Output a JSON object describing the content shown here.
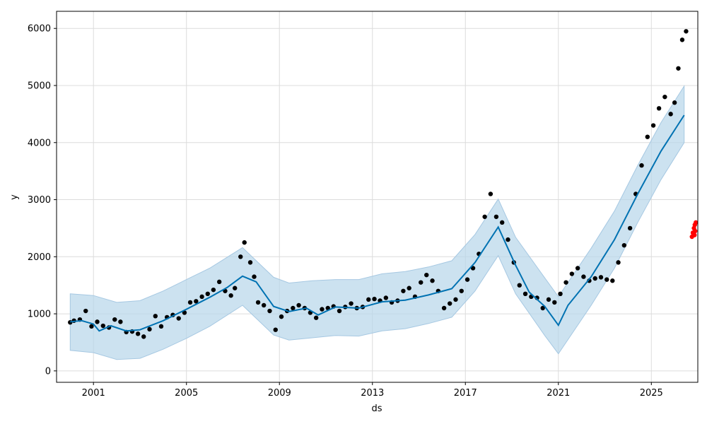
{
  "chart_data": {
    "type": "scatter",
    "title": "",
    "xlabel": "ds",
    "ylabel": "y",
    "xlim": [
      "1999-06-01",
      "2027-01-01"
    ],
    "ylim": [
      -200,
      6300
    ],
    "x_ticks": [
      "2001",
      "2005",
      "2009",
      "2013",
      "2017",
      "2021",
      "2025"
    ],
    "y_ticks": [
      0,
      1000,
      2000,
      3000,
      4000,
      5000,
      6000
    ],
    "grid": true,
    "colors": {
      "observed": "#000000",
      "forecast": "#0072B2",
      "uncertainty": "#b7d5ea",
      "test": "#ff0000"
    },
    "series": [
      {
        "role": "forecast",
        "points": [
          [
            "2000-01-01",
            860
          ],
          [
            "2000-07-01",
            880
          ],
          [
            "2001-01-01",
            820
          ],
          [
            "2001-04-01",
            700
          ],
          [
            "2001-10-01",
            790
          ],
          [
            "2002-06-01",
            700
          ],
          [
            "2003-01-01",
            720
          ],
          [
            "2004-01-01",
            880
          ],
          [
            "2005-01-01",
            1080
          ],
          [
            "2006-01-01",
            1290
          ],
          [
            "2006-10-01",
            1460
          ],
          [
            "2007-06-01",
            1660
          ],
          [
            "2008-01-01",
            1560
          ],
          [
            "2008-10-01",
            1130
          ],
          [
            "2009-06-01",
            1040
          ],
          [
            "2010-03-01",
            1100
          ],
          [
            "2010-09-01",
            980
          ],
          [
            "2011-06-01",
            1120
          ],
          [
            "2012-06-01",
            1100
          ],
          [
            "2013-06-01",
            1210
          ],
          [
            "2014-06-01",
            1240
          ],
          [
            "2015-06-01",
            1330
          ],
          [
            "2016-06-01",
            1440
          ],
          [
            "2017-06-01",
            1900
          ],
          [
            "2018-06-01",
            2520
          ],
          [
            "2019-03-01",
            1850
          ],
          [
            "2019-10-01",
            1380
          ],
          [
            "2020-06-01",
            1130
          ],
          [
            "2021-01-01",
            800
          ],
          [
            "2021-06-01",
            1150
          ],
          [
            "2022-06-01",
            1650
          ],
          [
            "2023-06-01",
            2300
          ],
          [
            "2024-06-01",
            3100
          ],
          [
            "2025-06-01",
            3850
          ],
          [
            "2026-06-01",
            4480
          ]
        ]
      },
      {
        "role": "interval",
        "upper": [
          [
            "2000-01-01",
            1350
          ],
          [
            "2001-01-01",
            1320
          ],
          [
            "2002-01-01",
            1200
          ],
          [
            "2003-01-01",
            1230
          ],
          [
            "2004-01-01",
            1400
          ],
          [
            "2005-01-01",
            1600
          ],
          [
            "2006-01-01",
            1800
          ],
          [
            "2007-06-01",
            2160
          ],
          [
            "2008-10-01",
            1640
          ],
          [
            "2009-06-01",
            1540
          ],
          [
            "2010-06-01",
            1580
          ],
          [
            "2011-06-01",
            1600
          ],
          [
            "2012-06-01",
            1600
          ],
          [
            "2013-06-01",
            1700
          ],
          [
            "2014-06-01",
            1740
          ],
          [
            "2015-06-01",
            1820
          ],
          [
            "2016-06-01",
            1930
          ],
          [
            "2017-06-01",
            2390
          ],
          [
            "2018-06-01",
            3010
          ],
          [
            "2019-03-01",
            2340
          ],
          [
            "2020-06-01",
            1630
          ],
          [
            "2021-01-01",
            1300
          ],
          [
            "2022-06-01",
            2150
          ],
          [
            "2023-06-01",
            2800
          ],
          [
            "2024-06-01",
            3600
          ],
          [
            "2025-06-01",
            4350
          ],
          [
            "2026-06-01",
            4990
          ]
        ],
        "lower": [
          [
            "2000-01-01",
            360
          ],
          [
            "2001-01-01",
            320
          ],
          [
            "2002-01-01",
            200
          ],
          [
            "2003-01-01",
            220
          ],
          [
            "2004-01-01",
            380
          ],
          [
            "2005-01-01",
            570
          ],
          [
            "2006-01-01",
            780
          ],
          [
            "2007-06-01",
            1150
          ],
          [
            "2008-10-01",
            630
          ],
          [
            "2009-06-01",
            540
          ],
          [
            "2010-06-01",
            580
          ],
          [
            "2011-06-01",
            620
          ],
          [
            "2012-06-01",
            610
          ],
          [
            "2013-06-01",
            700
          ],
          [
            "2014-06-01",
            740
          ],
          [
            "2015-06-01",
            830
          ],
          [
            "2016-06-01",
            940
          ],
          [
            "2017-06-01",
            1400
          ],
          [
            "2018-06-01",
            2020
          ],
          [
            "2019-03-01",
            1350
          ],
          [
            "2020-06-01",
            620
          ],
          [
            "2021-01-01",
            300
          ],
          [
            "2022-06-01",
            1150
          ],
          [
            "2023-06-01",
            1800
          ],
          [
            "2024-06-01",
            2600
          ],
          [
            "2025-06-01",
            3350
          ],
          [
            "2026-06-01",
            4000
          ]
        ]
      },
      {
        "role": "observed",
        "points": [
          [
            "2000-01-01",
            850
          ],
          [
            "2000-03-01",
            880
          ],
          [
            "2000-06-01",
            900
          ],
          [
            "2000-09-01",
            1050
          ],
          [
            "2000-12-01",
            780
          ],
          [
            "2001-03-01",
            860
          ],
          [
            "2001-06-01",
            790
          ],
          [
            "2001-09-01",
            760
          ],
          [
            "2001-12-01",
            900
          ],
          [
            "2002-03-01",
            860
          ],
          [
            "2002-06-01",
            680
          ],
          [
            "2002-09-01",
            690
          ],
          [
            "2002-12-01",
            650
          ],
          [
            "2003-03-01",
            600
          ],
          [
            "2003-06-01",
            730
          ],
          [
            "2003-09-01",
            960
          ],
          [
            "2003-12-01",
            780
          ],
          [
            "2004-03-01",
            940
          ],
          [
            "2004-06-01",
            980
          ],
          [
            "2004-09-01",
            920
          ],
          [
            "2004-12-01",
            1020
          ],
          [
            "2005-03-01",
            1200
          ],
          [
            "2005-06-01",
            1220
          ],
          [
            "2005-09-01",
            1300
          ],
          [
            "2005-12-01",
            1350
          ],
          [
            "2006-03-01",
            1420
          ],
          [
            "2006-06-01",
            1560
          ],
          [
            "2006-09-01",
            1400
          ],
          [
            "2006-12-01",
            1320
          ],
          [
            "2007-02-01",
            1450
          ],
          [
            "2007-05-01",
            2000
          ],
          [
            "2007-07-01",
            2250
          ],
          [
            "2007-10-01",
            1900
          ],
          [
            "2007-12-01",
            1650
          ],
          [
            "2008-02-01",
            1200
          ],
          [
            "2008-05-01",
            1150
          ],
          [
            "2008-08-01",
            1050
          ],
          [
            "2008-11-01",
            720
          ],
          [
            "2009-02-01",
            950
          ],
          [
            "2009-05-01",
            1050
          ],
          [
            "2009-08-01",
            1100
          ],
          [
            "2009-11-01",
            1150
          ],
          [
            "2010-02-01",
            1100
          ],
          [
            "2010-05-01",
            1020
          ],
          [
            "2010-08-01",
            930
          ],
          [
            "2010-11-01",
            1080
          ],
          [
            "2011-02-01",
            1100
          ],
          [
            "2011-05-01",
            1130
          ],
          [
            "2011-08-01",
            1050
          ],
          [
            "2011-11-01",
            1120
          ],
          [
            "2012-02-01",
            1180
          ],
          [
            "2012-05-01",
            1100
          ],
          [
            "2012-08-01",
            1120
          ],
          [
            "2012-11-01",
            1250
          ],
          [
            "2013-02-01",
            1260
          ],
          [
            "2013-05-01",
            1230
          ],
          [
            "2013-08-01",
            1280
          ],
          [
            "2013-11-01",
            1200
          ],
          [
            "2014-02-01",
            1230
          ],
          [
            "2014-05-01",
            1400
          ],
          [
            "2014-08-01",
            1450
          ],
          [
            "2014-11-01",
            1300
          ],
          [
            "2015-02-01",
            1550
          ],
          [
            "2015-05-01",
            1680
          ],
          [
            "2015-08-01",
            1580
          ],
          [
            "2015-11-01",
            1400
          ],
          [
            "2016-02-01",
            1100
          ],
          [
            "2016-05-01",
            1180
          ],
          [
            "2016-08-01",
            1250
          ],
          [
            "2016-11-01",
            1400
          ],
          [
            "2017-02-01",
            1600
          ],
          [
            "2017-05-01",
            1800
          ],
          [
            "2017-08-01",
            2050
          ],
          [
            "2017-11-01",
            2700
          ],
          [
            "2018-02-01",
            3100
          ],
          [
            "2018-05-01",
            2700
          ],
          [
            "2018-08-01",
            2600
          ],
          [
            "2018-11-01",
            2300
          ],
          [
            "2019-02-01",
            1900
          ],
          [
            "2019-05-01",
            1500
          ],
          [
            "2019-08-01",
            1350
          ],
          [
            "2019-11-01",
            1300
          ],
          [
            "2020-02-01",
            1280
          ],
          [
            "2020-05-01",
            1100
          ],
          [
            "2020-08-01",
            1250
          ],
          [
            "2020-11-01",
            1200
          ],
          [
            "2021-02-01",
            1350
          ],
          [
            "2021-05-01",
            1550
          ],
          [
            "2021-08-01",
            1700
          ],
          [
            "2021-11-01",
            1800
          ],
          [
            "2022-02-01",
            1650
          ],
          [
            "2022-05-01",
            1580
          ],
          [
            "2022-08-01",
            1620
          ],
          [
            "2022-11-01",
            1640
          ],
          [
            "2023-02-01",
            1600
          ],
          [
            "2023-05-01",
            1580
          ],
          [
            "2023-08-01",
            1900
          ],
          [
            "2023-11-01",
            2200
          ],
          [
            "2024-02-01",
            2500
          ],
          [
            "2024-05-01",
            3100
          ],
          [
            "2024-08-01",
            3600
          ],
          [
            "2024-11-01",
            4100
          ],
          [
            "2025-02-01",
            4300
          ],
          [
            "2025-05-01",
            4600
          ],
          [
            "2025-08-01",
            4800
          ],
          [
            "2025-11-01",
            4500
          ],
          [
            "2026-01-01",
            4700
          ],
          [
            "2026-03-01",
            5300
          ],
          [
            "2026-05-01",
            5800
          ],
          [
            "2026-07-01",
            5950
          ]
        ]
      },
      {
        "role": "test",
        "points": [
          [
            "2026-10-01",
            2350
          ],
          [
            "2026-10-15",
            2420
          ],
          [
            "2026-11-01",
            2500
          ],
          [
            "2026-11-15",
            2560
          ],
          [
            "2026-12-01",
            2600
          ],
          [
            "2026-11-20",
            2450
          ],
          [
            "2026-11-10",
            2380
          ]
        ]
      }
    ]
  }
}
